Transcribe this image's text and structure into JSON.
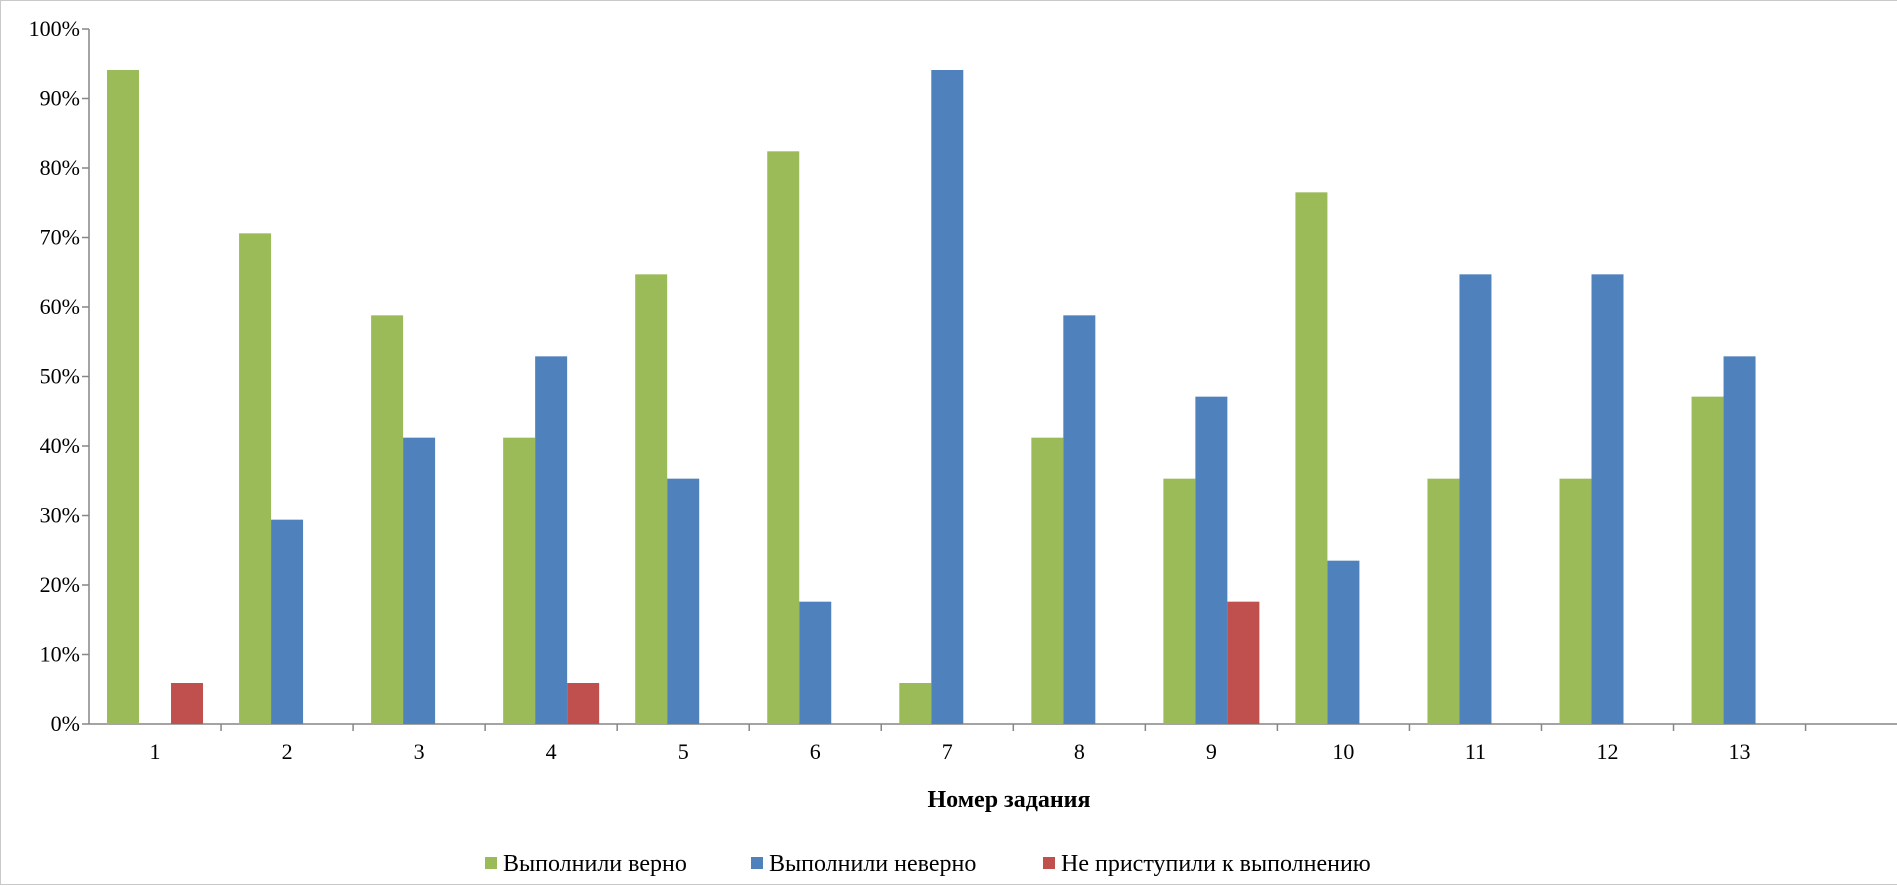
{
  "chart_data": {
    "type": "bar",
    "title": "",
    "xlabel": "Номер задания",
    "ylabel": "",
    "categories": [
      "1",
      "2",
      "3",
      "4",
      "5",
      "6",
      "7",
      "8",
      "9",
      "10",
      "11",
      "12",
      "13"
    ],
    "ylim": [
      0,
      100
    ],
    "y_ticks": [
      "0%",
      "10%",
      "20%",
      "30%",
      "40%",
      "50%",
      "60%",
      "70%",
      "80%",
      "90%",
      "100%"
    ],
    "grid": false,
    "legend_position": "bottom",
    "series": [
      {
        "name": "Выполнили верно",
        "color": "#9bbb59",
        "values": [
          94.1,
          70.6,
          58.8,
          41.2,
          64.7,
          82.4,
          5.9,
          41.2,
          35.3,
          76.5,
          35.3,
          35.3,
          47.1
        ]
      },
      {
        "name": "Выполнили неверно",
        "color": "#4f81bd",
        "values": [
          0,
          29.4,
          41.2,
          52.9,
          35.3,
          17.6,
          94.1,
          58.8,
          47.1,
          23.5,
          64.7,
          64.7,
          52.9
        ]
      },
      {
        "name": "Не приступили к выполнению",
        "color": "#c0504d",
        "values": [
          5.9,
          0,
          0,
          5.9,
          0,
          0,
          0,
          0,
          17.6,
          0,
          0,
          0,
          0
        ]
      }
    ]
  }
}
